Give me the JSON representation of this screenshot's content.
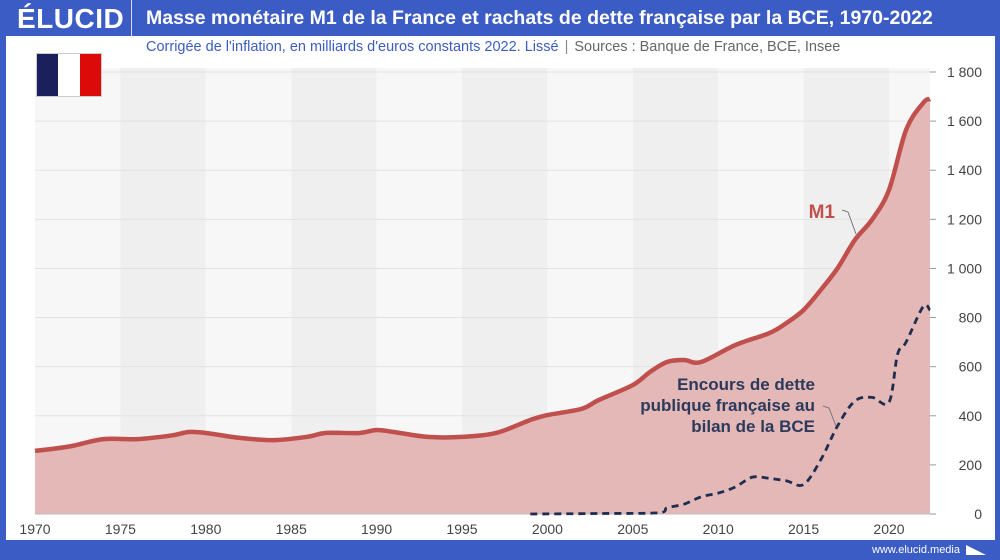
{
  "header": {
    "logo": "ÉLUCID",
    "title": "Masse monétaire M1 de la France et rachats de dette française par la BCE, 1970-2022",
    "subtitle": "Corrigée de l'inflation, en milliards d'euros constants 2022. Lissé",
    "separator": "|",
    "sources": "Sources : Banque de France, BCE, Insee"
  },
  "flag": {
    "colors": [
      "#1b1f5c",
      "#ffffff",
      "#dd0a0a"
    ]
  },
  "footer": {
    "url": "www.elucid.media"
  },
  "colors": {
    "brand": "#3b5cc4",
    "m1_line": "#c0504d",
    "m1_fill": "#e3b8b7",
    "debt_line": "#1f2d4f"
  },
  "chart_data": {
    "type": "area",
    "xlim": [
      1970,
      2022.4
    ],
    "ylim": [
      0,
      1800
    ],
    "x_ticks": [
      1970,
      1975,
      1980,
      1985,
      1990,
      1995,
      2000,
      2005,
      2010,
      2015,
      2020
    ],
    "y_ticks": [
      0,
      200,
      400,
      600,
      800,
      1000,
      1200,
      1400,
      1600,
      1800
    ],
    "y_tick_labels": [
      "0",
      "200",
      "400",
      "600",
      "800",
      "1 000",
      "1 200",
      "1 400",
      "1 600",
      "1 800"
    ],
    "y_axis_position": "right",
    "background": "alternating 5-year bands, horizontal grid",
    "series": [
      {
        "name": "M1",
        "style": "solid line with filled area",
        "x": [
          1970,
          1972,
          1974,
          1976,
          1978,
          1979,
          1980,
          1982,
          1984,
          1986,
          1987,
          1989,
          1990,
          1991,
          1993,
          1995,
          1997,
          1999,
          2000,
          2002,
          2003,
          2005,
          2006,
          2007,
          2008,
          2009,
          2011,
          2013,
          2014,
          2015,
          2016,
          2017,
          2018,
          2019,
          2020,
          2021,
          2022,
          2022.4
        ],
        "y": [
          257,
          275,
          305,
          305,
          320,
          334,
          330,
          310,
          301,
          315,
          330,
          330,
          342,
          334,
          314,
          314,
          330,
          383,
          403,
          428,
          464,
          525,
          578,
          619,
          627,
          619,
          688,
          737,
          778,
          831,
          912,
          1002,
          1116,
          1198,
          1320,
          1564,
          1674,
          1690
        ]
      },
      {
        "name": "Encours de dette publique française au bilan de la BCE",
        "style": "dashed line",
        "x": [
          1999,
          2003,
          2006.5,
          2007,
          2008,
          2009,
          2010,
          2011,
          2012,
          2013,
          2014,
          2015,
          2016,
          2017,
          2018,
          2019,
          2020,
          2020.5,
          2021,
          2022,
          2022.4
        ],
        "y": [
          0,
          2,
          5,
          25,
          40,
          70,
          85,
          110,
          150,
          145,
          135,
          120,
          220,
          360,
          460,
          475,
          455,
          650,
          700,
          845,
          830
        ]
      }
    ],
    "annotations": [
      {
        "text": "M1",
        "series": "M1"
      },
      {
        "text": "Encours de dette publique française au bilan de la BCE",
        "lines": [
          "Encours de dette",
          "publique française au",
          "bilan de la BCE"
        ]
      }
    ]
  }
}
